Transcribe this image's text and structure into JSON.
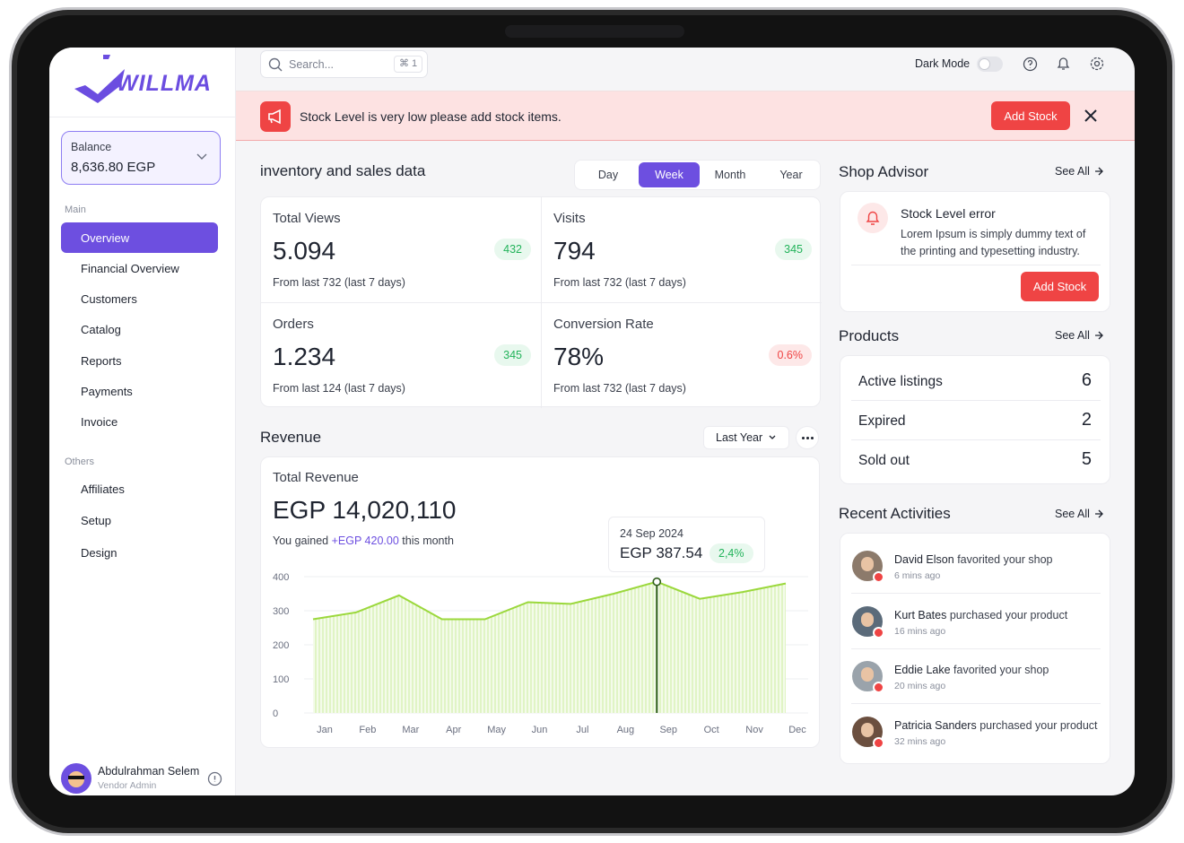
{
  "logo": "WILLMA",
  "search": {
    "placeholder": "Search...",
    "shortcut": "⌘ 1"
  },
  "topbar": {
    "dark_mode": "Dark Mode"
  },
  "alert": {
    "message": "Stock Level is very low please add stock items.",
    "button": "Add Stock"
  },
  "balance": {
    "label": "Balance",
    "value": "8,636.80 EGP"
  },
  "sidebar": {
    "main_label": "Main",
    "main": [
      "Overview",
      "Financial Overview",
      "Customers",
      "Catalog",
      "Reports",
      "Payments",
      "Invoice"
    ],
    "active": "Overview",
    "others_label": "Others",
    "others": [
      "Affiliates",
      "Setup",
      "Design"
    ]
  },
  "user": {
    "name": "Abdulrahman Selem",
    "role": "Vendor Admin"
  },
  "inventory": {
    "title": "inventory and sales data",
    "periods": [
      "Day",
      "Week",
      "Month",
      "Year"
    ],
    "active_period": "Week",
    "stats": [
      {
        "label": "Total Views",
        "value": "5.094",
        "change": "432",
        "trend": "up",
        "note": "From last 732 (last 7 days)"
      },
      {
        "label": "Visits",
        "value": "794",
        "change": "345",
        "trend": "up",
        "note": "From last 732 (last 7 days)"
      },
      {
        "label": "Orders",
        "value": "1.234",
        "change": "345",
        "trend": "up",
        "note": "From last 124 (last 7 days)"
      },
      {
        "label": "Conversion Rate",
        "value": "78%",
        "change": "0.6%",
        "trend": "down",
        "note": "From last 732 (last 7 days)"
      }
    ]
  },
  "revenue": {
    "title": "Revenue",
    "filter": "Last Year",
    "total_label": "Total Revenue",
    "total": "EGP 14,020,110",
    "gained_prefix": "You gained",
    "gained": "+EGP 420.00",
    "gained_suffix": "this month",
    "tooltip": {
      "date": "24 Sep 2024",
      "value": "EGP 387.54",
      "change": "2,4%"
    },
    "chart": {
      "type": "area",
      "categories": [
        "Jan",
        "Feb",
        "Mar",
        "Apr",
        "May",
        "Jun",
        "Jul",
        "Aug",
        "Sep",
        "Oct",
        "Nov",
        "Dec"
      ],
      "values": [
        275,
        295,
        345,
        275,
        275,
        325,
        320,
        350,
        385,
        335,
        355,
        380
      ],
      "color": "#9bd83c",
      "ylim": [
        0,
        400
      ],
      "yticks": [
        0,
        100,
        200,
        300,
        400
      ],
      "grid": true
    }
  },
  "advisor": {
    "title": "Shop Advisor",
    "see_all": "See All",
    "item_title": "Stock Level error",
    "item_text": "Lorem Ipsum is simply dummy text of the printing and typesetting industry.",
    "button": "Add Stock"
  },
  "products": {
    "title": "Products",
    "see_all": "See All",
    "rows": [
      {
        "label": "Active listings",
        "count": 6
      },
      {
        "label": "Expired",
        "count": 2
      },
      {
        "label": "Sold out",
        "count": 5
      }
    ]
  },
  "activities": {
    "title": "Recent Activities",
    "see_all": "See All",
    "items": [
      {
        "name": "David Elson",
        "action": "favorited your shop",
        "time": "6 mins ago"
      },
      {
        "name": "Kurt Bates",
        "action": "purchased your product",
        "time": "16 mins ago"
      },
      {
        "name": "Eddie Lake",
        "action": "favorited your shop",
        "time": "20 mins ago"
      },
      {
        "name": "Patricia Sanders",
        "action": "purchased your product",
        "time": "32 mins ago"
      }
    ]
  }
}
